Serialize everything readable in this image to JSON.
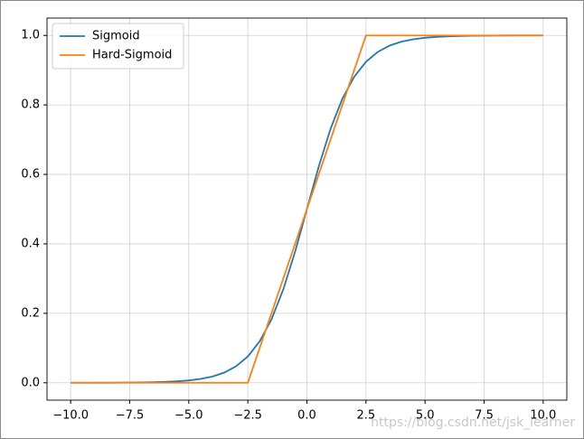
{
  "chart_data": {
    "type": "line",
    "x": [
      -10,
      -9.5,
      -9,
      -8.5,
      -8,
      -7.5,
      -7,
      -6.5,
      -6,
      -5.5,
      -5,
      -4.5,
      -4,
      -3.5,
      -3,
      -2.5,
      -2,
      -1.5,
      -1,
      -0.5,
      0,
      0.5,
      1,
      1.5,
      2,
      2.5,
      3,
      3.5,
      4,
      4.5,
      5,
      5.5,
      6,
      6.5,
      7,
      7.5,
      8,
      8.5,
      9,
      9.5,
      10
    ],
    "series": [
      {
        "name": "Sigmoid",
        "color": "#1f77b4",
        "values": [
          0.0,
          0.0001,
          0.0001,
          0.0002,
          0.0003,
          0.0006,
          0.0009,
          0.0015,
          0.0025,
          0.0041,
          0.0067,
          0.011,
          0.018,
          0.0293,
          0.0474,
          0.0759,
          0.1192,
          0.1824,
          0.2689,
          0.3775,
          0.5,
          0.6225,
          0.7311,
          0.8176,
          0.8808,
          0.9241,
          0.9526,
          0.9707,
          0.982,
          0.989,
          0.9933,
          0.9959,
          0.9975,
          0.9985,
          0.9991,
          0.9994,
          0.9997,
          0.9998,
          0.9999,
          0.9999,
          1.0
        ]
      },
      {
        "name": "Hard-Sigmoid",
        "color": "#ff7f0e",
        "values": [
          0,
          0,
          0,
          0,
          0,
          0,
          0,
          0,
          0,
          0,
          0,
          0,
          0,
          0,
          0,
          0,
          0.1,
          0.2,
          0.3,
          0.4,
          0.5,
          0.6,
          0.7,
          0.8,
          0.9,
          1,
          1,
          1,
          1,
          1,
          1,
          1,
          1,
          1,
          1,
          1,
          1,
          1,
          1,
          1,
          1
        ]
      }
    ],
    "xlim": [
      -11,
      11
    ],
    "ylim": [
      -0.05,
      1.05
    ],
    "xticks": [
      {
        "value": -10,
        "label": "−10.0"
      },
      {
        "value": -7.5,
        "label": "−7.5"
      },
      {
        "value": -5,
        "label": "−5.0"
      },
      {
        "value": -2.5,
        "label": "−2.5"
      },
      {
        "value": 0,
        "label": "0.0"
      },
      {
        "value": 2.5,
        "label": "2.5"
      },
      {
        "value": 5,
        "label": "5.0"
      },
      {
        "value": 7.5,
        "label": "7.5"
      },
      {
        "value": 10,
        "label": "10.0"
      }
    ],
    "yticks": [
      {
        "value": 0,
        "label": "0.0"
      },
      {
        "value": 0.2,
        "label": "0.2"
      },
      {
        "value": 0.4,
        "label": "0.4"
      },
      {
        "value": 0.6,
        "label": "0.6"
      },
      {
        "value": 0.8,
        "label": "0.8"
      },
      {
        "value": 1,
        "label": "1.0"
      }
    ],
    "grid": true,
    "legend": "upper left",
    "watermark": "https://blog.csdn.net/jsk_learner"
  }
}
